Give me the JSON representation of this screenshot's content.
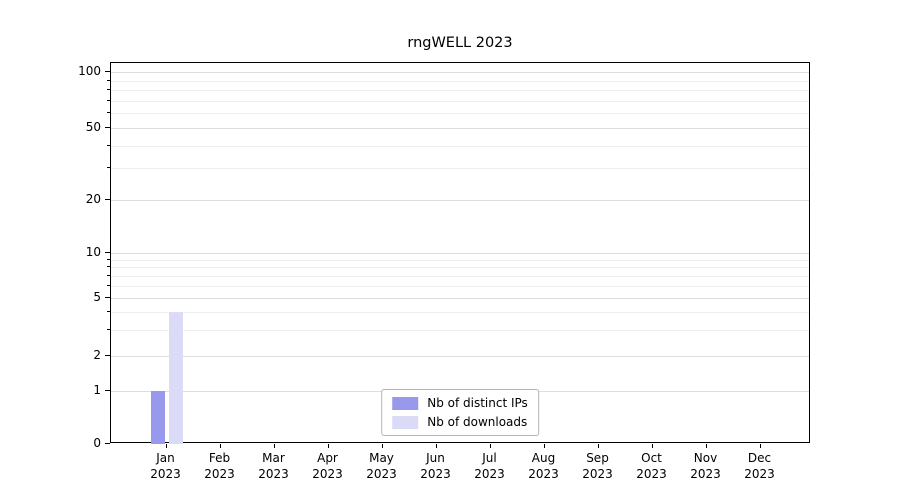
{
  "chart_data": {
    "type": "bar",
    "title": "rngWELL 2023",
    "categories": [
      "Jan 2023",
      "Feb 2023",
      "Mar 2023",
      "Apr 2023",
      "May 2023",
      "Jun 2023",
      "Jul 2023",
      "Aug 2023",
      "Sep 2023",
      "Oct 2023",
      "Nov 2023",
      "Dec 2023"
    ],
    "x_tick_lines": [
      [
        "Jan",
        "2023"
      ],
      [
        "Feb",
        "2023"
      ],
      [
        "Mar",
        "2023"
      ],
      [
        "Apr",
        "2023"
      ],
      [
        "May",
        "2023"
      ],
      [
        "Jun",
        "2023"
      ],
      [
        "Jul",
        "2023"
      ],
      [
        "Aug",
        "2023"
      ],
      [
        "Sep",
        "2023"
      ],
      [
        "Oct",
        "2023"
      ],
      [
        "Nov",
        "2023"
      ],
      [
        "Dec",
        "2023"
      ]
    ],
    "series": [
      {
        "name": "Nb of distinct IPs",
        "color": "#9898ec",
        "values": [
          1,
          0,
          0,
          0,
          0,
          0,
          0,
          0,
          0,
          0,
          0,
          0
        ]
      },
      {
        "name": "Nb of downloads",
        "color": "#dbdbf8",
        "values": [
          4,
          0,
          0,
          0,
          0,
          0,
          0,
          0,
          0,
          0,
          0,
          0
        ]
      }
    ],
    "yscale": "symlog",
    "yticks": [
      0,
      1,
      2,
      5,
      10,
      20,
      50,
      100
    ],
    "minor_yticks": [
      3,
      4,
      6,
      7,
      8,
      9,
      30,
      40,
      60,
      70,
      80,
      90
    ],
    "ylim": [
      0,
      112
    ],
    "xlabel": "",
    "ylabel": "",
    "grid": "horizontal major+minor",
    "legend_position": "lower center, inside plot"
  }
}
